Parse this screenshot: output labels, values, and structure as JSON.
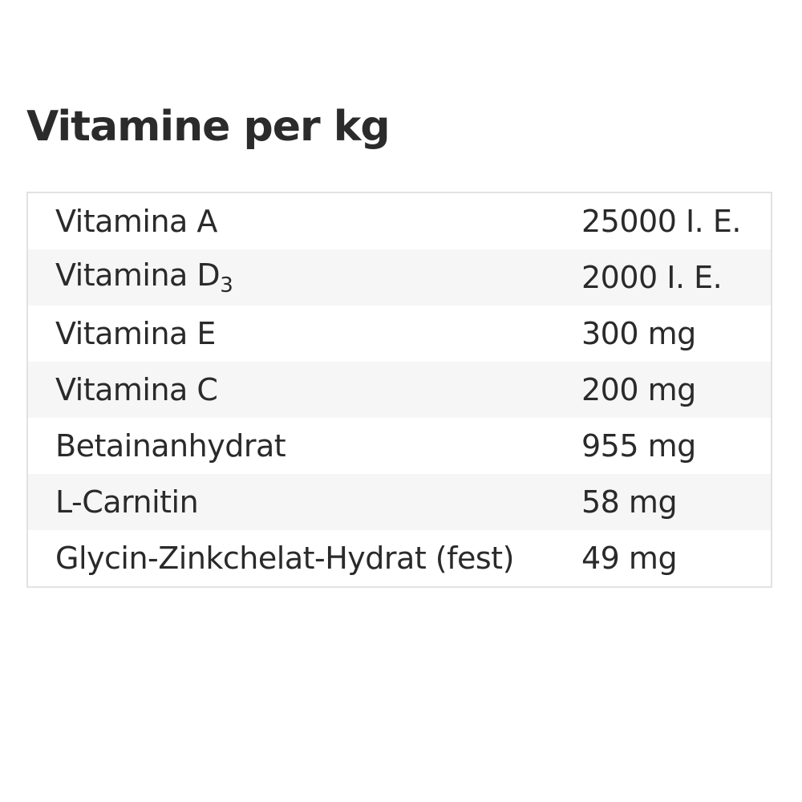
{
  "title": "Vitamine per kg",
  "rows": [
    {
      "name": "Vitamina A",
      "sub": "",
      "value": "25000 I. E."
    },
    {
      "name": "Vitamina D",
      "sub": "3",
      "value": "2000 I. E."
    },
    {
      "name": "Vitamina E",
      "sub": "",
      "value": "300 mg"
    },
    {
      "name": "Vitamina C",
      "sub": "",
      "value": "200 mg"
    },
    {
      "name": "Betainanhydrat",
      "sub": "",
      "value": "955 mg"
    },
    {
      "name": "L-Carnitin",
      "sub": "",
      "value": "58 mg"
    },
    {
      "name": "Glycin-Zinkchelat-Hydrat (fest)",
      "sub": "",
      "value": "49 mg"
    }
  ]
}
